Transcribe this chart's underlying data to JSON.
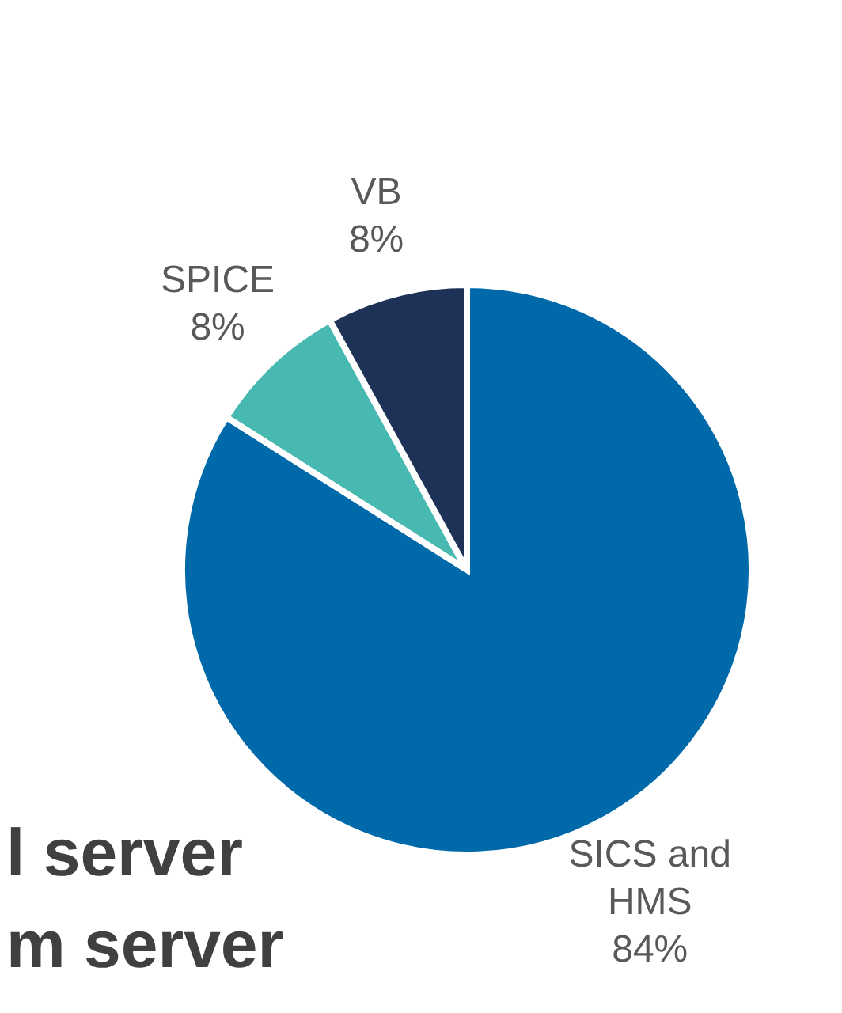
{
  "chart_data": {
    "type": "pie",
    "categories": [
      "SICS and HMS",
      "SPICE",
      "VB"
    ],
    "values": [
      84,
      8,
      8
    ],
    "colors": [
      "#0069aa",
      "#48b9b1",
      "#1e3156"
    ],
    "value_labels": [
      "84%",
      "8%",
      "8%"
    ],
    "annotations": [
      "l server",
      "m server"
    ]
  }
}
